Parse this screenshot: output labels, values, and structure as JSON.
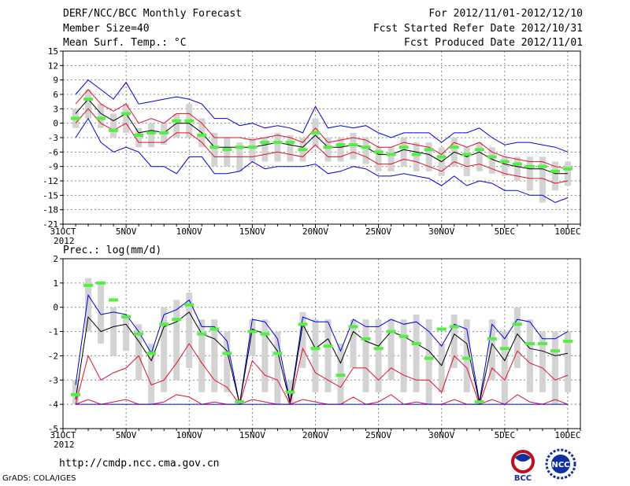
{
  "header": {
    "title": "DERF/NCC/BCC Monthly Forecast",
    "member_size": "Member Size=40",
    "variable": "Mean Surf. Temp.: °C",
    "period": "For 2012/11/01-2012/12/10",
    "fcst_started": "Fcst Started Refer Date 2012/10/31",
    "fcst_produced": "Fcst Produced Date 2012/11/01"
  },
  "footer": {
    "url": "http://cmdp.ncc.cma.gov.cn",
    "grads": "GrADS: COLA/IGES",
    "logo_bcc": "BCC",
    "logo_ncc": "NCC"
  },
  "colors": {
    "ensemble_mean": "#000000",
    "spread_inner": "#e0102a",
    "spread_outer": "#0000e0",
    "member_bar": "#d3d3d3",
    "obs_marker": "#55ee44",
    "grid": "#888888"
  },
  "chart_data": [
    {
      "type": "line",
      "id": "temperature",
      "panel_label": "",
      "x_ticks": [
        "31OCT",
        "5NOV",
        "10NOV",
        "15NOV",
        "20NOV",
        "25NOV",
        "30NOV",
        "5DEC",
        "10DEC"
      ],
      "x_tick_days": [
        0,
        5,
        10,
        15,
        20,
        25,
        30,
        35,
        40
      ],
      "x_year": "2012",
      "ylim": [
        -21,
        15
      ],
      "yticks": [
        -21,
        -18,
        -15,
        -12,
        -9,
        -6,
        -3,
        0,
        3,
        6,
        9,
        12,
        15
      ],
      "days": [
        1,
        2,
        3,
        4,
        5,
        6,
        7,
        8,
        9,
        10,
        11,
        12,
        13,
        14,
        15,
        16,
        17,
        18,
        19,
        20,
        21,
        22,
        23,
        24,
        25,
        26,
        27,
        28,
        29,
        30,
        31,
        32,
        33,
        34,
        35,
        36,
        37,
        38,
        39,
        40
      ],
      "series": [
        {
          "name": "max",
          "color": "blue",
          "values": [
            6,
            9,
            7,
            5,
            8.5,
            4,
            4.5,
            5,
            5.5,
            5,
            4,
            1,
            1,
            -0.5,
            0,
            -1,
            -0.5,
            -1,
            -2,
            3.5,
            -1,
            -0.5,
            -1,
            -0.5,
            -2,
            -3,
            -2,
            -2,
            -2,
            -4,
            -2,
            -2,
            -1,
            -3,
            -4.5,
            -4,
            -4,
            -4.5,
            -5,
            -6
          ]
        },
        {
          "name": "upper",
          "color": "red",
          "values": [
            4,
            7,
            4,
            2.5,
            4,
            0,
            1,
            0,
            2,
            2,
            0,
            -3,
            -3,
            -3,
            -3.5,
            -3,
            -2.5,
            -3,
            -4,
            -1,
            -4,
            -3.5,
            -3,
            -3.5,
            -5,
            -5,
            -4,
            -4.5,
            -5,
            -6.5,
            -4,
            -5,
            -4,
            -6,
            -7,
            -7.5,
            -8,
            -8,
            -9,
            -9.5
          ]
        },
        {
          "name": "mean",
          "color": "black",
          "values": [
            2,
            5,
            2,
            0.5,
            2,
            -2,
            -1.5,
            -2,
            0,
            0,
            -2,
            -5,
            -5,
            -5,
            -5,
            -4.5,
            -4,
            -4.5,
            -5,
            -2.5,
            -5,
            -5,
            -4.5,
            -5,
            -6.5,
            -6.5,
            -5.5,
            -6,
            -6.5,
            -8,
            -6,
            -7,
            -6,
            -7.5,
            -8.5,
            -9,
            -9.5,
            -9.5,
            -10.5,
            -10.5
          ]
        },
        {
          "name": "lower",
          "color": "red",
          "values": [
            0,
            3,
            0,
            -1.5,
            0,
            -4,
            -4,
            -4,
            -2,
            -2,
            -4,
            -7,
            -7,
            -7,
            -7,
            -6.5,
            -6,
            -6.5,
            -7,
            -4.5,
            -7,
            -7,
            -6,
            -7,
            -8.5,
            -8.5,
            -7.5,
            -8,
            -9,
            -10,
            -8,
            -9,
            -8.5,
            -9.5,
            -10.5,
            -11,
            -11.5,
            -11.5,
            -12.5,
            -12
          ]
        },
        {
          "name": "min",
          "color": "blue",
          "values": [
            -3,
            1,
            -4,
            -6,
            -5,
            -6,
            -9,
            -9,
            -10.5,
            -7,
            -7,
            -10.5,
            -10.5,
            -10,
            -8,
            -9.5,
            -9,
            -9,
            -9,
            -8.5,
            -10.5,
            -10,
            -9,
            -9.5,
            -11,
            -11,
            -10.5,
            -11,
            -11.5,
            -13,
            -11,
            -13,
            -12,
            -12.5,
            -14,
            -14,
            -15,
            -15,
            -16.5,
            -15.5
          ]
        }
      ],
      "member_bars": {
        "low": [
          -1,
          1,
          -1,
          -3,
          -2,
          -5,
          -5,
          -4.5,
          -3,
          -3,
          -5,
          -9,
          -9,
          -10,
          -8,
          -8,
          -8,
          -8,
          -8,
          -5,
          -8,
          -8,
          -7.5,
          -8.5,
          -10,
          -10,
          -9,
          -10,
          -10,
          -11,
          -9,
          -11,
          -10,
          -10.5,
          -11,
          -12,
          -14,
          -16.5,
          -14,
          -13
        ],
        "high": [
          3,
          7,
          4,
          2,
          4,
          -1,
          0,
          0,
          2,
          4,
          1,
          -2,
          -3,
          -4,
          -3,
          -3,
          -2,
          -2.5,
          -3,
          1,
          -3,
          -3,
          -2,
          -3,
          -5,
          -5,
          -3,
          -4,
          -4,
          -5,
          -3,
          -5,
          -4,
          -5,
          -7,
          -7,
          -7,
          -7,
          -8,
          -8
        ]
      },
      "observed": [
        1,
        5,
        1,
        -1.5,
        2,
        -2.5,
        -2,
        -2,
        0.5,
        0.5,
        -2.5,
        -5,
        -5.5,
        -5,
        -5,
        -4,
        -4,
        -4,
        -5.5,
        -2,
        -5,
        -4.5,
        -4.5,
        -5,
        -6,
        -6.5,
        -5,
        -6.5,
        -5.5,
        -7,
        -5,
        -6.5,
        -5.5,
        -7,
        -8,
        -8.5,
        -9,
        -9,
        -10,
        -9.5
      ]
    },
    {
      "type": "line",
      "id": "precipitation",
      "panel_label": "Prec.: log(mm/d)",
      "x_ticks": [
        "31OCT",
        "5NOV",
        "10NOV",
        "15NOV",
        "20NOV",
        "25NOV",
        "30NOV",
        "5DEC",
        "10DEC"
      ],
      "x_tick_days": [
        0,
        5,
        10,
        15,
        20,
        25,
        30,
        35,
        40
      ],
      "x_year": "2012",
      "ylim": [
        -5,
        2
      ],
      "yticks": [
        -5,
        -4,
        -3,
        -2,
        -1,
        0,
        1,
        2
      ],
      "days": [
        1,
        2,
        3,
        4,
        5,
        6,
        7,
        8,
        9,
        10,
        11,
        12,
        13,
        14,
        15,
        16,
        17,
        18,
        19,
        20,
        21,
        22,
        23,
        24,
        25,
        26,
        27,
        28,
        29,
        30,
        31,
        32,
        33,
        34,
        35,
        36,
        37,
        38,
        39,
        40
      ],
      "series": [
        {
          "name": "max",
          "color": "blue",
          "values": [
            -3.2,
            0.5,
            -0.3,
            -0.2,
            -0.3,
            -1,
            -1.9,
            -0.3,
            -0.1,
            0.3,
            -0.8,
            -0.8,
            -1.4,
            -4,
            -0.5,
            -0.6,
            -1.3,
            -3.9,
            -0.4,
            -0.6,
            -0.6,
            -1.8,
            -0.5,
            -0.8,
            -0.8,
            -0.5,
            -0.7,
            -0.6,
            -1,
            -1.6,
            -0.7,
            -0.9,
            -3.9,
            -0.7,
            -1.3,
            -0.5,
            -0.6,
            -1.3,
            -1.3,
            -1
          ]
        },
        {
          "name": "mean",
          "color": "black",
          "values": [
            -3.8,
            -0.4,
            -1,
            -0.8,
            -0.7,
            -1.4,
            -2.2,
            -0.8,
            -0.6,
            -0.2,
            -1.1,
            -1.3,
            -1.8,
            -4,
            -0.9,
            -1.1,
            -1.8,
            -3.95,
            -0.7,
            -1.7,
            -1.3,
            -2.3,
            -1,
            -1.4,
            -1.6,
            -1,
            -1.2,
            -1.5,
            -1.8,
            -2.4,
            -1.1,
            -1.5,
            -3.95,
            -1.5,
            -2.2,
            -1.1,
            -1.7,
            -1.8,
            -2,
            -1.9
          ]
        },
        {
          "name": "upper",
          "color": "red",
          "values": [
            -4,
            -2,
            -3,
            -2.7,
            -2.5,
            -2,
            -3.2,
            -3,
            -2.3,
            -1.5,
            -2.3,
            -3,
            -3.3,
            -4,
            -2.2,
            -2.8,
            -3,
            -4,
            -1.7,
            -2.7,
            -3,
            -3.3,
            -2.5,
            -2.5,
            -3,
            -2.5,
            -2.8,
            -3,
            -3,
            -3.5,
            -2,
            -2.5,
            -4,
            -2.5,
            -3,
            -1.8,
            -2.3,
            -2.5,
            -3,
            -2.8
          ]
        },
        {
          "name": "lower",
          "color": "red",
          "values": [
            -4,
            -3.8,
            -4,
            -3.9,
            -3.8,
            -4,
            -4,
            -3.9,
            -3.6,
            -3.7,
            -4,
            -3.9,
            -4,
            -4,
            -3.8,
            -3.9,
            -4,
            -4,
            -3.8,
            -3.9,
            -4,
            -4,
            -3.7,
            -4,
            -3.9,
            -3.6,
            -4,
            -3.9,
            -4,
            -4,
            -3.8,
            -4,
            -4,
            -3.8,
            -4,
            -3.6,
            -3.9,
            -4,
            -3.8,
            -4
          ]
        },
        {
          "name": "min",
          "color": "blue",
          "values": [
            -4,
            -4,
            -4,
            -4,
            -4,
            -4,
            -4,
            -4,
            -4,
            -4,
            -4,
            -4,
            -4,
            -4,
            -4,
            -4,
            -4,
            -4,
            -4,
            -4,
            -4,
            -4,
            -4,
            -4,
            -4,
            -4,
            -4,
            -4,
            -4,
            -4,
            -4,
            -4,
            -4,
            -4,
            -4,
            -4,
            -4,
            -4,
            -4,
            -4
          ]
        }
      ],
      "member_bars": {
        "low": [
          -4,
          -1,
          -1.5,
          -2,
          -1.8,
          -3,
          -4,
          -3.5,
          -3,
          -2.5,
          -3.5,
          -3.5,
          -3.5,
          -4,
          -2,
          -3.5,
          -4,
          -4,
          -2.5,
          -3.5,
          -3.5,
          -4,
          -2.5,
          -3.5,
          -3.5,
          -3,
          -3.5,
          -3.5,
          -4,
          -3.5,
          -2.5,
          -3.5,
          -4,
          -3,
          -4,
          -2.5,
          -3.5,
          -3.5,
          -4,
          -3.5
        ],
        "high": [
          -3,
          1.2,
          1,
          0,
          -0.3,
          -0.7,
          -1.5,
          0,
          0.3,
          0.6,
          -0.5,
          -0.5,
          -1,
          -3.8,
          -0.5,
          -0.5,
          -1,
          -3,
          -0.2,
          -0.5,
          -0.5,
          -1.5,
          -0.5,
          -0.5,
          -0.5,
          -0.5,
          -0.5,
          -0.3,
          -0.5,
          -1.5,
          -0.3,
          -0.5,
          -3.8,
          -0.5,
          -1,
          0,
          -0.5,
          -1,
          -1,
          -1
        ]
      },
      "observed": [
        -3.6,
        0.9,
        1,
        0.3,
        -0.4,
        -1.1,
        -1.9,
        -0.7,
        -0.5,
        0.1,
        -1.1,
        -0.9,
        -1.9,
        -3.9,
        -1,
        -1.1,
        -1.9,
        -3.5,
        -0.7,
        -1.7,
        -1.6,
        -2.8,
        -0.8,
        -1.3,
        -1.7,
        -1,
        -1.2,
        -1.5,
        -2.1,
        -0.9,
        -0.8,
        -2.1,
        -3.9,
        -1.3,
        -1.7,
        -0.7,
        -1.5,
        -1.5,
        -1.8,
        -1.4
      ]
    }
  ]
}
